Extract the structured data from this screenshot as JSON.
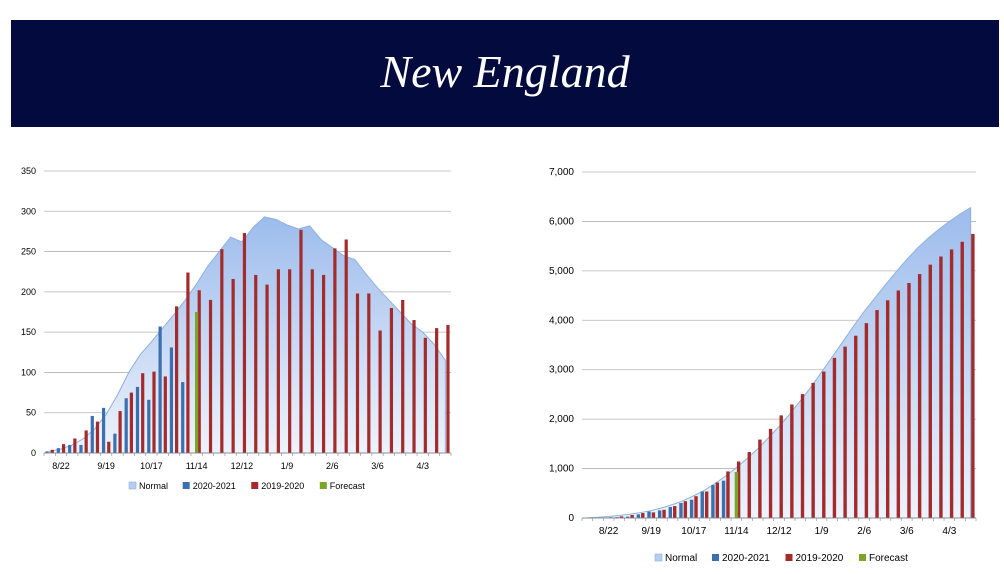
{
  "header": {
    "title": "New England"
  },
  "colors": {
    "banner_bg": "#020a3e",
    "normal": "#b6cdf2",
    "normal_edge": "#8fb0e0",
    "series_2020_2021": "#3a6fb0",
    "series_2019_2020": "#a32b2b",
    "forecast": "#7ba428"
  },
  "chart_data": [
    {
      "type": "bar",
      "ylim": [
        0,
        350
      ],
      "yticks": [
        0,
        50,
        100,
        150,
        200,
        250,
        300,
        350
      ],
      "ytick_labels": [
        "0",
        "50",
        "100",
        "150",
        "200",
        "250",
        "300",
        "350"
      ],
      "x": [
        "8/15",
        "8/22",
        "8/29",
        "9/5",
        "9/12",
        "9/19",
        "9/26",
        "10/3",
        "10/10",
        "10/17",
        "10/24",
        "10/31",
        "11/7",
        "11/14",
        "11/21",
        "11/28",
        "12/5",
        "12/12",
        "12/19",
        "12/26",
        "1/2",
        "1/9",
        "1/16",
        "1/23",
        "1/30",
        "2/6",
        "2/13",
        "2/20",
        "2/27",
        "3/6",
        "3/13",
        "3/20",
        "3/27",
        "4/3",
        "4/10",
        "4/17"
      ],
      "xtick_labels": [
        {
          "index": 1,
          "label": "8/22"
        },
        {
          "index": 5,
          "label": "9/19"
        },
        {
          "index": 9,
          "label": "10/17"
        },
        {
          "index": 13,
          "label": "11/14"
        },
        {
          "index": 17,
          "label": "12/12"
        },
        {
          "index": 21,
          "label": "1/9"
        },
        {
          "index": 25,
          "label": "2/6"
        },
        {
          "index": 29,
          "label": "3/6"
        },
        {
          "index": 33,
          "label": "4/3"
        }
      ],
      "series": [
        {
          "name": "Normal",
          "kind": "area",
          "values": [
            2,
            5,
            10,
            18,
            30,
            48,
            72,
            100,
            122,
            138,
            155,
            172,
            190,
            210,
            232,
            250,
            268,
            262,
            280,
            293,
            290,
            283,
            278,
            282,
            265,
            255,
            245,
            240,
            222,
            205,
            190,
            175,
            160,
            150,
            135,
            115
          ]
        },
        {
          "name": "2020-2021",
          "kind": "bar",
          "values": [
            2,
            6,
            10,
            10,
            46,
            56,
            24,
            68,
            82,
            66,
            157,
            131,
            88,
            null,
            null,
            null,
            null,
            null,
            null,
            null,
            null,
            null,
            null,
            null,
            null,
            null,
            null,
            null,
            null,
            null,
            null,
            null,
            null,
            null,
            null,
            null
          ]
        },
        {
          "name": "2019-2020",
          "kind": "bar",
          "values": [
            4,
            11,
            18,
            28,
            39,
            14,
            52,
            75,
            99,
            101,
            95,
            182,
            224,
            202,
            190,
            253,
            216,
            273,
            221,
            209,
            228,
            228,
            277,
            228,
            221,
            254,
            265,
            198,
            198,
            152,
            180,
            190,
            165,
            143,
            155,
            159
          ]
        },
        {
          "name": "Forecast",
          "kind": "bar",
          "values": [
            null,
            null,
            null,
            null,
            null,
            null,
            null,
            null,
            null,
            null,
            null,
            null,
            null,
            175,
            null,
            null,
            null,
            null,
            null,
            null,
            null,
            null,
            null,
            null,
            null,
            null,
            null,
            null,
            null,
            null,
            null,
            null,
            null,
            null,
            null,
            null
          ]
        }
      ],
      "legend": [
        "Normal",
        "2020-2021",
        "2019-2020",
        "Forecast"
      ],
      "legend_position": "bottom",
      "grid": true
    },
    {
      "type": "bar",
      "ylim": [
        0,
        7000
      ],
      "yticks": [
        0,
        1000,
        2000,
        3000,
        4000,
        5000,
        6000,
        7000
      ],
      "ytick_labels": [
        "0",
        "1,000",
        "2,000",
        "3,000",
        "4,000",
        "5,000",
        "6,000",
        "7,000"
      ],
      "x": [
        "8/8",
        "8/15",
        "8/22",
        "8/29",
        "9/5",
        "9/12",
        "9/19",
        "9/26",
        "10/3",
        "10/10",
        "10/17",
        "10/24",
        "10/31",
        "11/7",
        "11/14",
        "11/21",
        "11/28",
        "12/5",
        "12/12",
        "12/19",
        "12/26",
        "1/2",
        "1/9",
        "1/16",
        "1/23",
        "1/30",
        "2/6",
        "2/13",
        "2/20",
        "2/27",
        "3/6",
        "3/13",
        "3/20",
        "3/27",
        "4/3",
        "4/10",
        "4/17"
      ],
      "xtick_labels": [
        {
          "index": 2,
          "label": "8/22"
        },
        {
          "index": 6,
          "label": "9/19"
        },
        {
          "index": 10,
          "label": "10/17"
        },
        {
          "index": 14,
          "label": "11/14"
        },
        {
          "index": 18,
          "label": "12/12"
        },
        {
          "index": 22,
          "label": "1/9"
        },
        {
          "index": 26,
          "label": "2/6"
        },
        {
          "index": 30,
          "label": "3/6"
        },
        {
          "index": 34,
          "label": "4/3"
        }
      ],
      "series": [
        {
          "name": "Normal",
          "kind": "area",
          "values": [
            5,
            15,
            30,
            50,
            75,
            110,
            150,
            205,
            270,
            350,
            450,
            560,
            700,
            850,
            1020,
            1200,
            1400,
            1620,
            1850,
            2100,
            2370,
            2650,
            2950,
            3260,
            3570,
            3880,
            4180,
            4450,
            4720,
            4980,
            5230,
            5460,
            5660,
            5840,
            6000,
            6150,
            6280
          ]
        },
        {
          "name": "2020-2021",
          "kind": "bar",
          "values": [
            null,
            2,
            8,
            18,
            28,
            74,
            130,
            154,
            222,
            304,
            370,
            536,
            667,
            755,
            null,
            null,
            null,
            null,
            null,
            null,
            null,
            null,
            null,
            null,
            null,
            null,
            null,
            null,
            null,
            null,
            null,
            null,
            null,
            null,
            null,
            null,
            null
          ]
        },
        {
          "name": "2019-2020",
          "kind": "bar",
          "values": [
            null,
            4,
            15,
            33,
            61,
            100,
            114,
            166,
            241,
            340,
            441,
            536,
            718,
            942,
            1144,
            1334,
            1587,
            1803,
            2076,
            2297,
            2506,
            2734,
            2962,
            3239,
            3467,
            3688,
            3942,
            4207,
            4405,
            4603,
            4755,
            4935,
            5125,
            5290,
            5433,
            5588,
            5747
          ]
        },
        {
          "name": "Forecast",
          "kind": "bar",
          "values": [
            null,
            null,
            null,
            null,
            null,
            null,
            null,
            null,
            null,
            null,
            null,
            null,
            null,
            null,
            930,
            null,
            null,
            null,
            null,
            null,
            null,
            null,
            null,
            null,
            null,
            null,
            null,
            null,
            null,
            null,
            null,
            null,
            null,
            null,
            null,
            null,
            null
          ]
        }
      ],
      "legend": [
        "Normal",
        "2020-2021",
        "2019-2020",
        "Forecast"
      ],
      "legend_position": "bottom",
      "grid": true
    }
  ]
}
